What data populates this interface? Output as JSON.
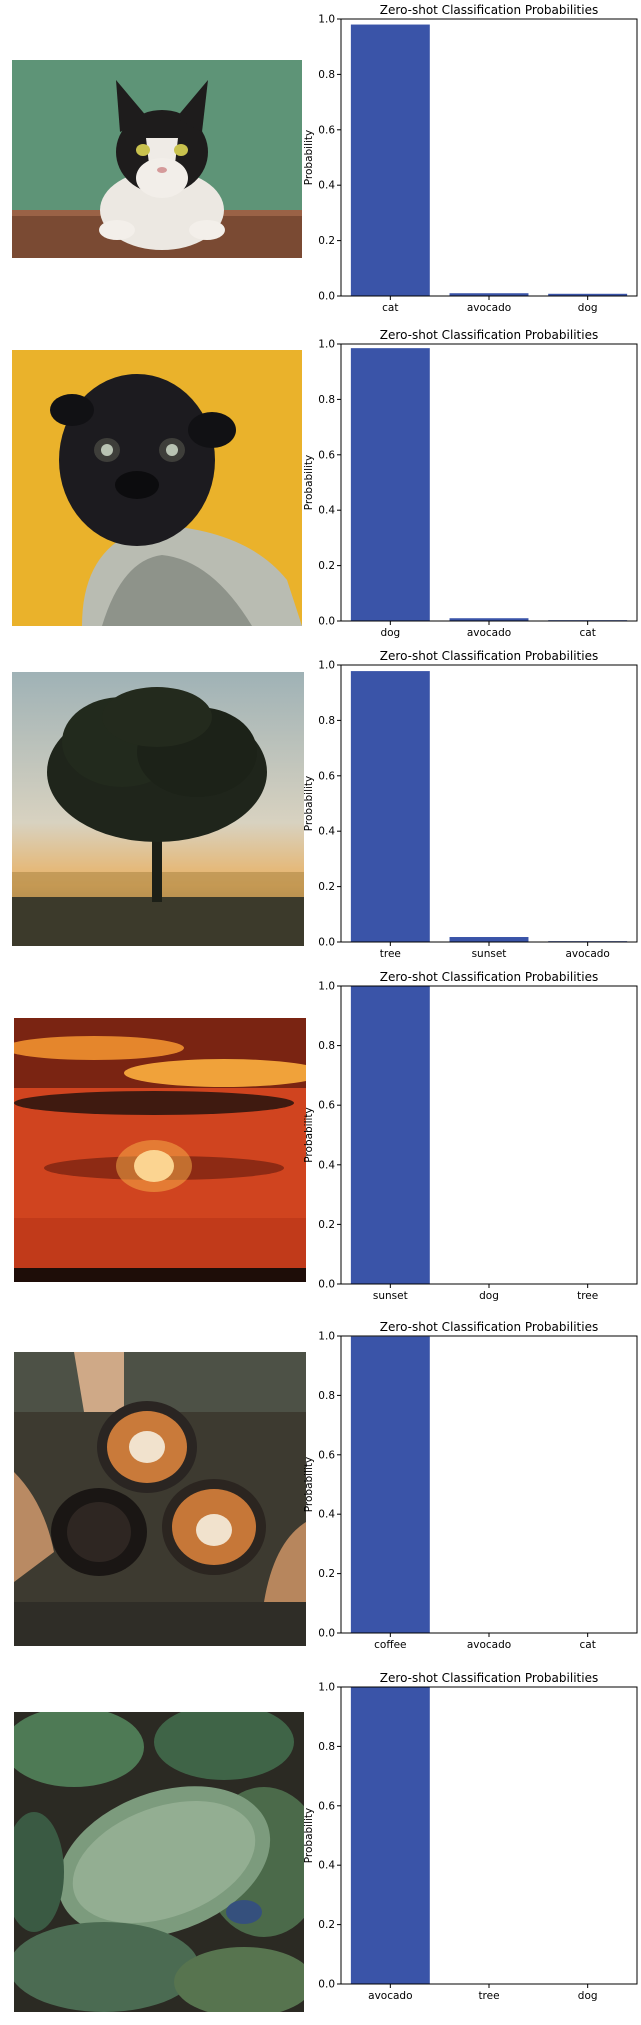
{
  "colors": {
    "bar": "#3a54a8",
    "axis": "#000000",
    "background": "#ffffff"
  },
  "panels": [
    {
      "image": "cat-photo",
      "chart_index": 0
    },
    {
      "image": "pug-photo",
      "chart_index": 1
    },
    {
      "image": "tree-photo",
      "chart_index": 2
    },
    {
      "image": "sunset-photo",
      "chart_index": 3
    },
    {
      "image": "coffee-photo",
      "chart_index": 4
    },
    {
      "image": "avocado-photo",
      "chart_index": 5
    }
  ],
  "chart_data": [
    {
      "type": "bar",
      "title": "Zero-shot Classification Probabilities",
      "xlabel": "",
      "ylabel": "Probability",
      "categories": [
        "cat",
        "avocado",
        "dog"
      ],
      "values": [
        0.98,
        0.01,
        0.008
      ],
      "ylim": [
        0,
        1.0
      ],
      "yticks": [
        "0.0",
        "0.2",
        "0.4",
        "0.6",
        "0.8",
        "1.0"
      ],
      "grid": false
    },
    {
      "type": "bar",
      "title": "Zero-shot Classification Probabilities",
      "xlabel": "",
      "ylabel": "Probability",
      "categories": [
        "dog",
        "avocado",
        "cat"
      ],
      "values": [
        0.985,
        0.01,
        0.003
      ],
      "ylim": [
        0,
        1.0
      ],
      "yticks": [
        "0.0",
        "0.2",
        "0.4",
        "0.6",
        "0.8",
        "1.0"
      ],
      "grid": false
    },
    {
      "type": "bar",
      "title": "Zero-shot Classification Probabilities",
      "xlabel": "",
      "ylabel": "Probability",
      "categories": [
        "tree",
        "sunset",
        "avocado"
      ],
      "values": [
        0.978,
        0.018,
        0.003
      ],
      "ylim": [
        0,
        1.0
      ],
      "yticks": [
        "0.0",
        "0.2",
        "0.4",
        "0.6",
        "0.8",
        "1.0"
      ],
      "grid": false
    },
    {
      "type": "bar",
      "title": "Zero-shot Classification Probabilities",
      "xlabel": "",
      "ylabel": "Probability",
      "categories": [
        "sunset",
        "dog",
        "tree"
      ],
      "values": [
        0.999,
        0.0005,
        0.0005
      ],
      "ylim": [
        0,
        1.0
      ],
      "yticks": [
        "0.0",
        "0.2",
        "0.4",
        "0.6",
        "0.8",
        "1.0"
      ],
      "grid": false
    },
    {
      "type": "bar",
      "title": "Zero-shot Classification Probabilities",
      "xlabel": "",
      "ylabel": "Probability",
      "categories": [
        "coffee",
        "avocado",
        "cat"
      ],
      "values": [
        0.998,
        0.001,
        0.001
      ],
      "ylim": [
        0,
        1.0
      ],
      "yticks": [
        "0.0",
        "0.2",
        "0.4",
        "0.6",
        "0.8",
        "1.0"
      ],
      "grid": false
    },
    {
      "type": "bar",
      "title": "Zero-shot Classification Probabilities",
      "xlabel": "",
      "ylabel": "Probability",
      "categories": [
        "avocado",
        "tree",
        "dog"
      ],
      "values": [
        0.999,
        0.0005,
        0.0005
      ],
      "ylim": [
        0,
        1.0
      ],
      "yticks": [
        "0.0",
        "0.2",
        "0.4",
        "0.6",
        "0.8",
        "1.0"
      ],
      "grid": false
    }
  ]
}
